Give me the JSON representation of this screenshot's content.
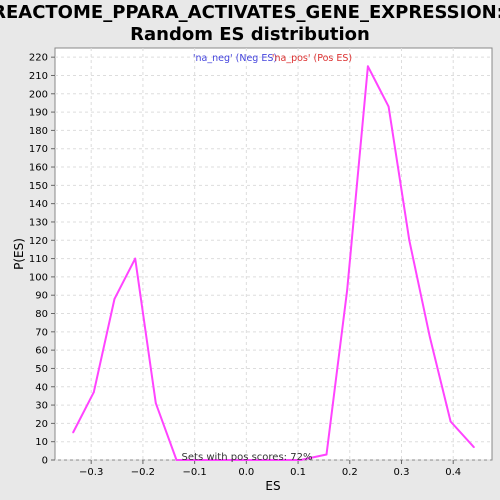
{
  "chart_data": {
    "type": "line",
    "title": "REACTOME_PPARA_ACTIVATES_GENE_EXPRESSION:",
    "subtitle": "Random ES distribution",
    "xlabel": "ES",
    "ylabel": "P(ES)",
    "xlim": [
      -0.37,
      0.475
    ],
    "ylim": [
      0,
      225
    ],
    "xticks": [
      -0.3,
      -0.2,
      -0.1,
      0.0,
      0.1,
      0.2,
      0.3,
      0.4
    ],
    "xtick_labels": [
      "−0.3",
      "−0.2",
      "−0.1",
      "0.0",
      "0.1",
      "0.2",
      "0.3",
      "0.4"
    ],
    "yticks": [
      0,
      10,
      20,
      30,
      40,
      50,
      60,
      70,
      80,
      90,
      100,
      110,
      120,
      130,
      140,
      150,
      160,
      170,
      180,
      190,
      200,
      210,
      220
    ],
    "grid": true,
    "legend": [
      {
        "label": "'na_neg' (Neg ES)",
        "color": "#4444dd"
      },
      {
        "label": "'na_pos' (Pos ES)",
        "color": "#dd3333"
      }
    ],
    "legend_position": "top-center",
    "series": [
      {
        "color": "#ff44ff",
        "x": [
          -0.335,
          -0.295,
          -0.255,
          -0.215,
          -0.175,
          -0.135,
          -0.095,
          -0.055,
          -0.015,
          0.025,
          0.065,
          0.105,
          0.155,
          0.195,
          0.235,
          0.275,
          0.315,
          0.355,
          0.395,
          0.44
        ],
        "y": [
          15,
          37,
          88,
          110,
          31,
          0,
          0,
          0,
          0,
          0,
          0,
          0,
          3,
          93,
          215,
          193,
          120,
          67,
          21,
          7
        ]
      }
    ],
    "annotation": "Sets with pos scores: 72%"
  }
}
